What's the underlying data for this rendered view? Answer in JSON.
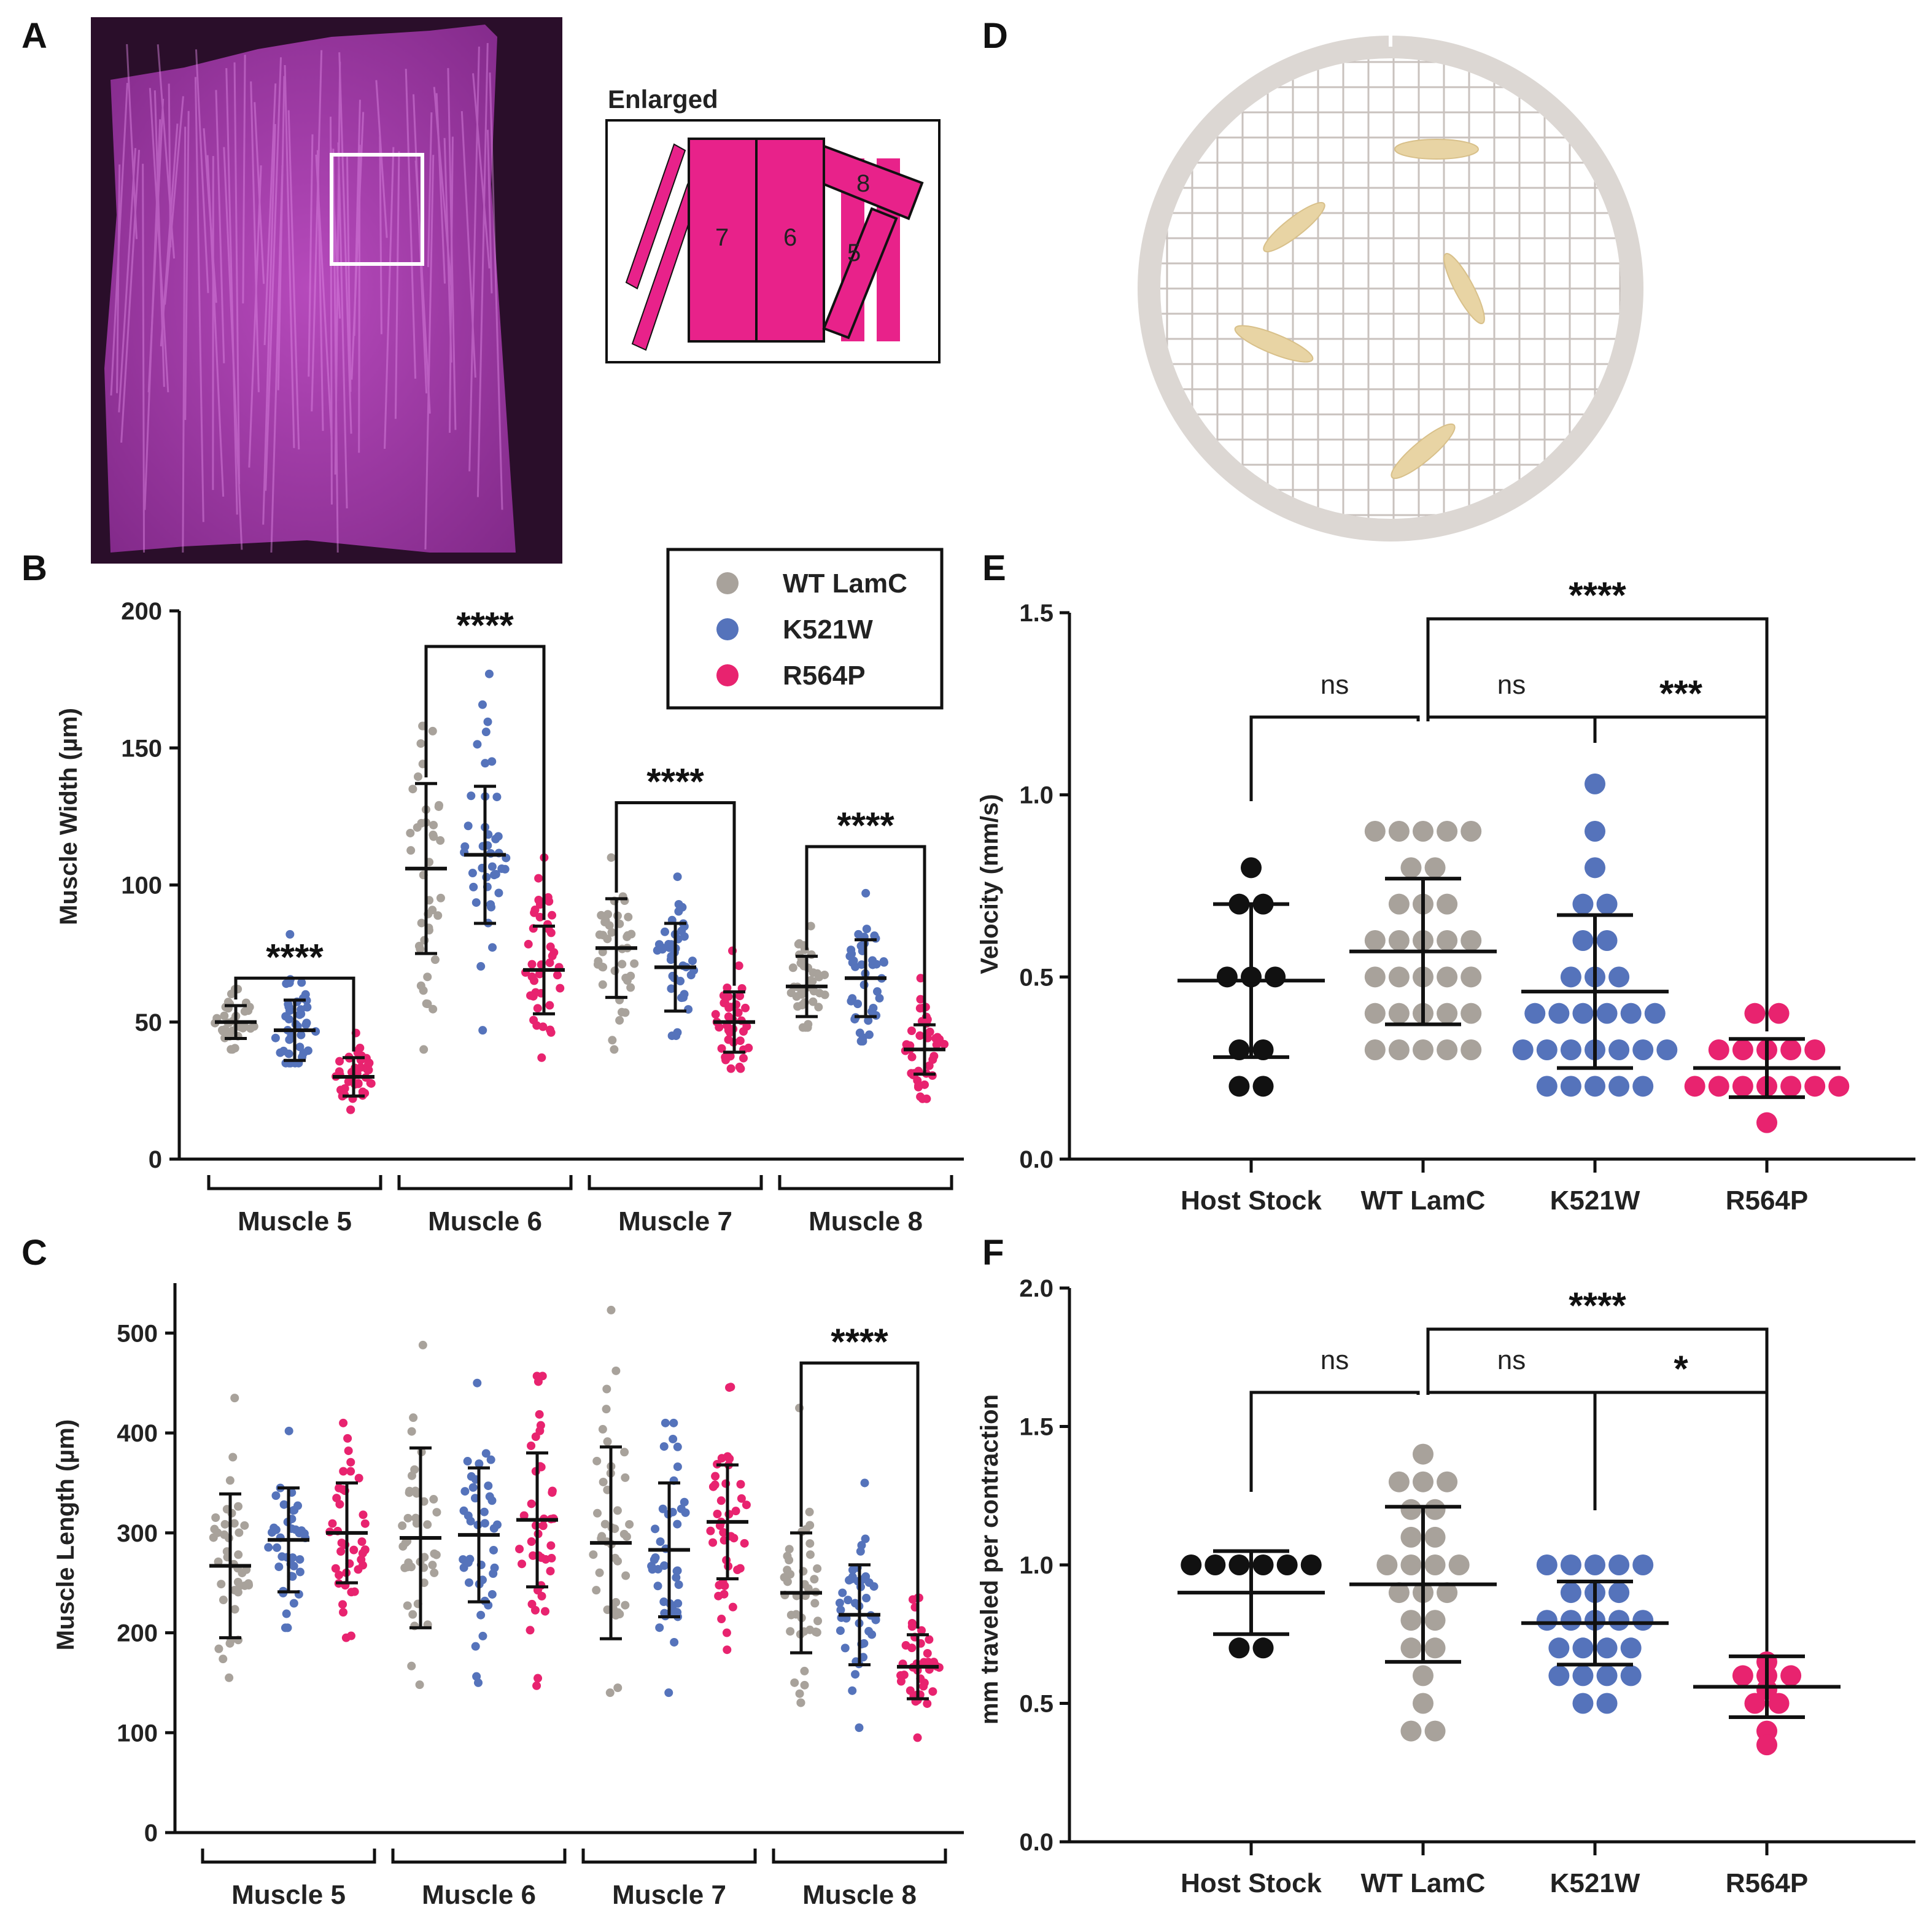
{
  "figure": {
    "panel_labels": [
      "A",
      "B",
      "C",
      "D",
      "E",
      "F"
    ],
    "colors": {
      "WT LamC": "#a8a29b",
      "K521W": "#5573bb",
      "R564P": "#e8236f",
      "Host Stock": "#111111",
      "micrograph": "#b040b8",
      "micrograph_bg": "#2a0e2a",
      "schematic": "#e8228a",
      "larva": "#e8d4a4",
      "dish": "#dcd7d3"
    }
  },
  "panel_a": {
    "schematic_title": "Enlarged",
    "muscle_numbers": [
      "7",
      "6",
      "8",
      "5"
    ]
  },
  "legend": {
    "entries": [
      {
        "label": "WT LamC",
        "color": "#a8a29b"
      },
      {
        "label": "K521W",
        "color": "#5573bb"
      },
      {
        "label": "R564P",
        "color": "#e8236f"
      }
    ]
  },
  "chart_data": [
    {
      "panel": "B",
      "type": "scatter",
      "ylabel": "Muscle Width (µm)",
      "ylim": [
        0,
        200
      ],
      "yticks": [
        0,
        50,
        100,
        150,
        200
      ],
      "groups": [
        "Muscle 5",
        "Muscle 6",
        "Muscle 7",
        "Muscle 8"
      ],
      "series": [
        {
          "name": "WT LamC",
          "mean": [
            50,
            106,
            77,
            63
          ],
          "sd": [
            6,
            31,
            18,
            11
          ],
          "range": [
            [
              40,
              62
            ],
            [
              40,
              158
            ],
            [
              40,
              110
            ],
            [
              48,
              85
            ]
          ],
          "n": 40
        },
        {
          "name": "K521W",
          "mean": [
            47,
            111,
            70,
            66
          ],
          "sd": [
            11,
            25,
            16,
            14
          ],
          "range": [
            [
              35,
              82
            ],
            [
              47,
              177
            ],
            [
              45,
              103
            ],
            [
              43,
              97
            ]
          ],
          "n": 40
        },
        {
          "name": "R564P",
          "mean": [
            30,
            69,
            50,
            40
          ],
          "sd": [
            7,
            16,
            11,
            9
          ],
          "range": [
            [
              18,
              46
            ],
            [
              37,
              110
            ],
            [
              33,
              76
            ],
            [
              22,
              66
            ]
          ],
          "n": 40
        }
      ],
      "annotations": [
        {
          "text": "****",
          "group": "Muscle 5",
          "between": [
            "WT LamC",
            "R564P"
          ],
          "y": 66
        },
        {
          "text": "****",
          "group": "Muscle 6",
          "between": [
            "WT LamC",
            "R564P"
          ],
          "y": 187
        },
        {
          "text": "****",
          "group": "Muscle 7",
          "between": [
            "WT LamC",
            "R564P"
          ],
          "y": 130
        },
        {
          "text": "****",
          "group": "Muscle 8",
          "between": [
            "WT LamC",
            "R564P"
          ],
          "y": 114
        }
      ]
    },
    {
      "panel": "C",
      "type": "scatter",
      "ylabel": "Muscle Length (µm)",
      "ylim": [
        0,
        550
      ],
      "yticks": [
        0,
        100,
        200,
        300,
        400,
        500
      ],
      "groups": [
        "Muscle 5",
        "Muscle 6",
        "Muscle 7",
        "Muscle 8"
      ],
      "series": [
        {
          "name": "WT LamC",
          "mean": [
            267,
            295,
            290,
            240
          ],
          "sd": [
            72,
            90,
            96,
            60
          ],
          "range": [
            [
              155,
              435
            ],
            [
              148,
              488
            ],
            [
              140,
              523
            ],
            [
              130,
              425
            ]
          ],
          "n": 40
        },
        {
          "name": "K521W",
          "mean": [
            293,
            298,
            283,
            218
          ],
          "sd": [
            52,
            67,
            67,
            50
          ],
          "range": [
            [
              205,
              402
            ],
            [
              150,
              450
            ],
            [
              140,
              410
            ],
            [
              105,
              350
            ]
          ],
          "n": 40
        },
        {
          "name": "R564P",
          "mean": [
            300,
            313,
            311,
            166
          ],
          "sd": [
            50,
            67,
            57,
            32
          ],
          "range": [
            [
              195,
              410
            ],
            [
              147,
              457
            ],
            [
              183,
              446
            ],
            [
              95,
              235
            ]
          ],
          "n": 40
        }
      ],
      "annotations": [
        {
          "text": "****",
          "group": "Muscle 8",
          "between": [
            "WT LamC",
            "R564P"
          ],
          "y": 470
        }
      ]
    },
    {
      "panel": "E",
      "type": "scatter",
      "ylabel": "Velocity (mm/s)",
      "ylim": [
        0,
        1.5
      ],
      "yticks": [
        "0.0",
        "0.5",
        "1.0",
        "1.5"
      ],
      "categories": [
        "Host Stock",
        "WT LamC",
        "K521W",
        "R564P"
      ],
      "mean": [
        0.49,
        0.57,
        0.46,
        0.25
      ],
      "sd": [
        0.21,
        0.2,
        0.21,
        0.08
      ],
      "points": [
        [
          0.8,
          0.7,
          0.7,
          0.5,
          0.5,
          0.5,
          0.3,
          0.3,
          0.2,
          0.2
        ],
        [
          0.9,
          0.9,
          0.9,
          0.9,
          0.9,
          0.8,
          0.8,
          0.7,
          0.7,
          0.7,
          0.6,
          0.6,
          0.6,
          0.6,
          0.6,
          0.5,
          0.5,
          0.5,
          0.5,
          0.5,
          0.4,
          0.4,
          0.4,
          0.4,
          0.4,
          0.3,
          0.3,
          0.3,
          0.3,
          0.3
        ],
        [
          1.03,
          0.9,
          0.8,
          0.7,
          0.7,
          0.6,
          0.6,
          0.5,
          0.5,
          0.5,
          0.4,
          0.4,
          0.4,
          0.4,
          0.4,
          0.4,
          0.3,
          0.3,
          0.3,
          0.3,
          0.3,
          0.3,
          0.3,
          0.2,
          0.2,
          0.2,
          0.2,
          0.2
        ],
        [
          0.4,
          0.4,
          0.3,
          0.3,
          0.3,
          0.3,
          0.3,
          0.2,
          0.2,
          0.2,
          0.2,
          0.2,
          0.2,
          0.2,
          0.1
        ]
      ],
      "annotations": [
        {
          "text": "ns",
          "between": [
            "Host Stock",
            "WT LamC"
          ]
        },
        {
          "text": "ns",
          "between": [
            "WT LamC",
            "K521W"
          ]
        },
        {
          "text": "***",
          "between": [
            "K521W",
            "R564P"
          ]
        },
        {
          "text": "****",
          "between": [
            "WT LamC",
            "R564P"
          ]
        }
      ]
    },
    {
      "panel": "F",
      "type": "scatter",
      "ylabel": "mm traveled per contraction",
      "ylim": [
        0,
        2.0
      ],
      "yticks": [
        "0.0",
        "0.5",
        "1.0",
        "1.5",
        "2.0"
      ],
      "categories": [
        "Host Stock",
        "WT LamC",
        "K521W",
        "R564P"
      ],
      "mean": [
        0.9,
        0.93,
        0.79,
        0.56
      ],
      "sd": [
        0.15,
        0.28,
        0.15,
        0.11
      ],
      "points": [
        [
          1.0,
          1.0,
          1.0,
          1.0,
          1.0,
          1.0,
          0.7,
          0.7
        ],
        [
          1.4,
          1.3,
          1.3,
          1.3,
          1.2,
          1.2,
          1.1,
          1.1,
          1.0,
          1.0,
          1.0,
          1.0,
          0.9,
          0.9,
          0.9,
          0.8,
          0.8,
          0.7,
          0.7,
          0.6,
          0.5,
          0.4,
          0.4
        ],
        [
          1.0,
          1.0,
          1.0,
          1.0,
          1.0,
          0.9,
          0.9,
          0.9,
          0.8,
          0.8,
          0.8,
          0.8,
          0.8,
          0.7,
          0.7,
          0.7,
          0.7,
          0.6,
          0.6,
          0.6,
          0.6,
          0.5,
          0.5
        ],
        [
          0.65,
          0.6,
          0.6,
          0.6,
          0.55,
          0.5,
          0.5,
          0.4,
          0.35
        ]
      ],
      "annotations": [
        {
          "text": "ns",
          "between": [
            "Host Stock",
            "WT LamC"
          ]
        },
        {
          "text": "ns",
          "between": [
            "WT LamC",
            "K521W"
          ]
        },
        {
          "text": "*",
          "between": [
            "K521W",
            "R564P"
          ]
        },
        {
          "text": "****",
          "between": [
            "WT LamC",
            "R564P"
          ]
        }
      ]
    }
  ]
}
